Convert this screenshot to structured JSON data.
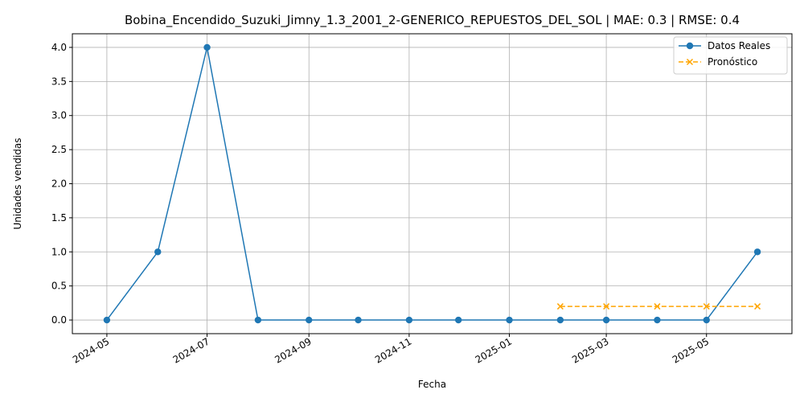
{
  "chart_data": {
    "type": "line",
    "title": "Bobina_Encendido_Suzuki_Jimny_1.3_2001_2-GENERICO_REPUESTOS_DEL_SOL | MAE: 0.3 | RMSE: 0.4",
    "xlabel": "Fecha",
    "ylabel": "Unidades vendidas",
    "x_ticks": [
      "2024-05",
      "2024-07",
      "2024-09",
      "2024-11",
      "2025-01",
      "2025-03",
      "2025-05"
    ],
    "y_ticks": [
      "0.0",
      "0.5",
      "1.0",
      "1.5",
      "2.0",
      "2.5",
      "3.0",
      "3.5",
      "4.0"
    ],
    "ylim": [
      -0.2,
      4.2
    ],
    "xlim": [
      "2024-04-10",
      "2025-06-22"
    ],
    "grid": true,
    "legend_position": "top-right",
    "series": [
      {
        "name": "Datos Reales",
        "color": "#1f77b4",
        "marker": "circle",
        "linestyle": "solid",
        "x": [
          "2024-05-01",
          "2024-06-01",
          "2024-07-01",
          "2024-08-01",
          "2024-09-01",
          "2024-10-01",
          "2024-11-01",
          "2024-12-01",
          "2025-01-01",
          "2025-02-01",
          "2025-03-01",
          "2025-04-01",
          "2025-05-01",
          "2025-06-01"
        ],
        "values": [
          0,
          1,
          4,
          0,
          0,
          0,
          0,
          0,
          0,
          0,
          0,
          0,
          0,
          1
        ]
      },
      {
        "name": "Pronóstico",
        "color": "#ffa500",
        "marker": "x",
        "linestyle": "dashed",
        "x": [
          "2025-02-01",
          "2025-03-01",
          "2025-04-01",
          "2025-05-01",
          "2025-06-01"
        ],
        "values": [
          0.2,
          0.2,
          0.2,
          0.2,
          0.2
        ]
      }
    ]
  }
}
